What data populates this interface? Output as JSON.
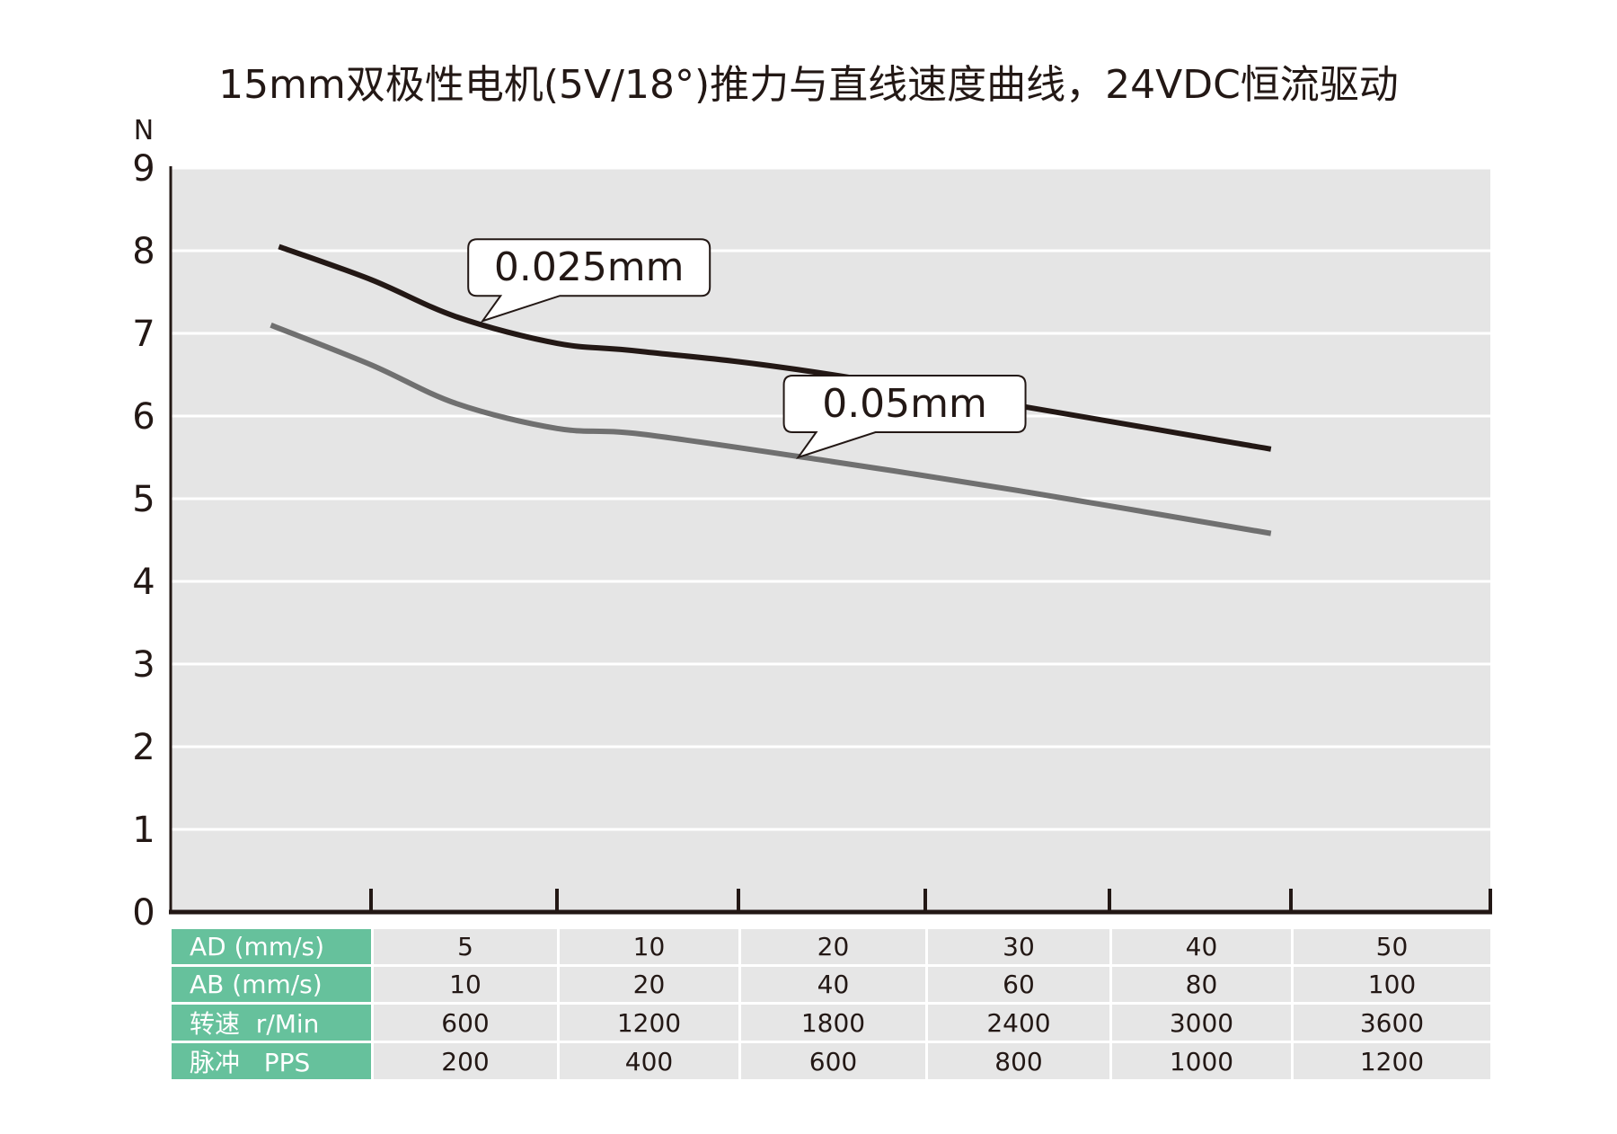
{
  "chart_data": {
    "type": "line",
    "title": "15mm双极性电机(5V/18°)推力与直线速度曲线，24VDC恒流驱动",
    "ylabel": "N",
    "ylim": [
      0,
      9
    ],
    "yticks": [
      "0",
      "1",
      "2",
      "3",
      "4",
      "5",
      "6",
      "7",
      "8",
      "9"
    ],
    "xlim": [
      0,
      7
    ],
    "x_note": "x in column-index units (tick k = table column k)",
    "grid": true,
    "series": [
      {
        "name": "0.025mm",
        "color": "#231815",
        "x": [
          0.54,
          1.0,
          1.46,
          2.0,
          2.47,
          3.5,
          5.89
        ],
        "y": [
          8.05,
          7.65,
          7.2,
          6.88,
          6.78,
          6.5,
          5.6
        ]
      },
      {
        "name": "0.05mm",
        "color": "#707070",
        "x": [
          0.5,
          1.0,
          1.46,
          2.0,
          2.47,
          3.5,
          4.5,
          5.89
        ],
        "y": [
          7.1,
          6.62,
          6.15,
          5.85,
          5.78,
          5.45,
          5.1,
          4.58
        ]
      }
    ],
    "annotations": [
      {
        "text": "0.025mm",
        "series": 0,
        "x": 1.6,
        "y": 7.15
      },
      {
        "text": "0.05mm",
        "series": 1,
        "x": 3.32,
        "y": 5.5
      }
    ],
    "table": {
      "rows": [
        {
          "label": "AD (mm/s)",
          "values": [
            "5",
            "10",
            "20",
            "30",
            "40",
            "50"
          ]
        },
        {
          "label": "AB (mm/s)",
          "values": [
            "10",
            "20",
            "40",
            "60",
            "80",
            "100"
          ]
        },
        {
          "label": "转速  r/Min",
          "values": [
            "600",
            "1200",
            "1800",
            "2400",
            "3000",
            "3600"
          ]
        },
        {
          "label": "脉冲   PPS",
          "values": [
            "200",
            "400",
            "600",
            "800",
            "1000",
            "1200"
          ]
        }
      ]
    },
    "colors": {
      "plot_bg": "#e5e5e5",
      "grid": "#ffffff",
      "table_header": "#66c19c",
      "table_cell": "#e6e6e6"
    }
  }
}
